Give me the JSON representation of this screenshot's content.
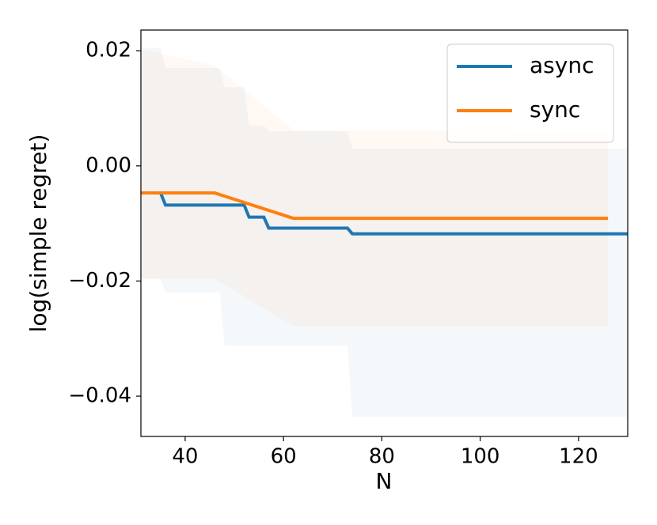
{
  "chart_data": {
    "type": "line",
    "xlabel": "N",
    "ylabel": "log(simple regret)",
    "xlim": [
      31,
      130
    ],
    "ylim": [
      -0.047,
      0.0236
    ],
    "xticks": [
      40,
      60,
      80,
      100,
      120
    ],
    "yticks": [
      0.02,
      {
        "value": 0,
        "label": "0.00"
      },
      {
        "value": -0.02,
        "label": "−0.02"
      },
      {
        "value": -0.04,
        "label": "−0.04"
      }
    ],
    "grid": false,
    "legend": "upper right",
    "series": [
      {
        "name": "async",
        "color": "#1f77b4",
        "x": [
          31,
          35,
          36,
          47,
          48,
          52,
          53,
          56,
          57,
          73,
          74,
          130
        ],
        "values": [
          -0.0047,
          -0.0047,
          -0.0068,
          -0.0068,
          -0.0068,
          -0.0068,
          -0.0089,
          -0.0089,
          -0.0108,
          -0.0108,
          -0.0118,
          -0.0118
        ],
        "upper": [
          0.0205,
          0.0205,
          0.017,
          0.017,
          0.0137,
          0.0137,
          0.007,
          0.007,
          0.006,
          0.006,
          0.003,
          0.003
        ],
        "lower": [
          -0.0196,
          -0.0196,
          -0.022,
          -0.022,
          -0.0312,
          -0.0312,
          -0.0312,
          -0.0312,
          -0.0312,
          -0.0312,
          -0.0436,
          -0.0436
        ]
      },
      {
        "name": "sync",
        "color": "#ff7f0e",
        "x": [
          31,
          46,
          62,
          126
        ],
        "values": [
          -0.0047,
          -0.0047,
          -0.0091,
          -0.0091
        ],
        "upper": [
          0.0203,
          0.0174,
          0.0062,
          0.0058
        ],
        "lower": [
          -0.0196,
          -0.0196,
          -0.0278,
          -0.0278
        ]
      }
    ]
  }
}
